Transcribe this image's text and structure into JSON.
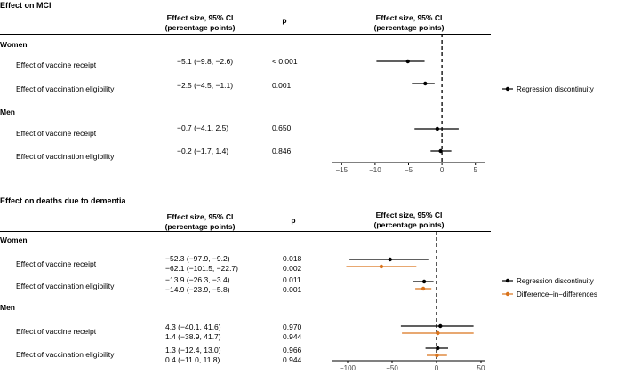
{
  "panels": [
    {
      "title": "Effect on MCI",
      "col_effect": "Effect size, 95% CI",
      "col_effect_sub": "(percentage points)",
      "col_p": "p",
      "chart_header": "Effect size, 95% CI",
      "chart_header_sub": "(percentage points)",
      "groups": [
        {
          "name": "Women",
          "rows": [
            {
              "label": "Effect of vaccine receipt",
              "estimates": [
                {
                  "series": "Regression discontinuity",
                  "text": "−5.1 (−9.8, −2.6)",
                  "p": "< 0.001"
                }
              ]
            },
            {
              "label": "Effect of vaccination eligibility",
              "estimates": [
                {
                  "series": "Regression discontinuity",
                  "text": "−2.5 (−4.5, −1.1)",
                  "p": "0.001"
                }
              ]
            }
          ]
        },
        {
          "name": "Men",
          "rows": [
            {
              "label": "Effect of vaccine receipt",
              "estimates": [
                {
                  "series": "Regression discontinuity",
                  "text": "−0.7 (−4.1,  2.5)",
                  "p": "0.650"
                }
              ]
            },
            {
              "label": "Effect of vaccination eligibility",
              "estimates": [
                {
                  "series": "Regression discontinuity",
                  "text": "−0.2 (−1.7,  1.4)",
                  "p": "0.846"
                }
              ]
            }
          ]
        }
      ],
      "legend": [
        {
          "name": "Regression discontinuity",
          "color": "#000000"
        }
      ]
    },
    {
      "title": "Effect on deaths due to dementia",
      "col_effect": "Effect size, 95% CI",
      "col_effect_sub": "(percentage points)",
      "col_p": "p",
      "chart_header": "Effect size, 95% CI",
      "chart_header_sub": "(percentage points)",
      "groups": [
        {
          "name": "Women",
          "rows": [
            {
              "label": "Effect of vaccine receipt",
              "estimates": [
                {
                  "series": "Regression discontinuity",
                  "text": "−52.3 (−97.9,  −9.2)",
                  "p": "0.018"
                },
                {
                  "series": "Difference−in−differences",
                  "text": "−62.1 (−101.5, −22.7)",
                  "p": "0.002"
                }
              ]
            },
            {
              "label": "Effect of vaccination eligibility",
              "estimates": [
                {
                  "series": "Regression discontinuity",
                  "text": "−13.9 (−26.3,  −3.4)",
                  "p": "0.011"
                },
                {
                  "series": "Difference−in−differences",
                  "text": "−14.9 (−23.9,  −5.8)",
                  "p": "0.001"
                }
              ]
            }
          ]
        },
        {
          "name": "Men",
          "rows": [
            {
              "label": "Effect of vaccine receipt",
              "estimates": [
                {
                  "series": "Regression discontinuity",
                  "text": "4.3 (−40.1,  41.6)",
                  "p": "0.970"
                },
                {
                  "series": "Difference−in−differences",
                  "text": "1.4 (−38.9,  41.7)",
                  "p": "0.944"
                }
              ]
            },
            {
              "label": "Effect of vaccination eligibility",
              "estimates": [
                {
                  "series": "Regression discontinuity",
                  "text": "1.3 (−12.4,  13.0)",
                  "p": "0.966"
                },
                {
                  "series": "Difference−in−differences",
                  "text": "0.4 (−11.0,  11.8)",
                  "p": "0.944"
                }
              ]
            }
          ]
        }
      ],
      "legend": [
        {
          "name": "Regression discontinuity",
          "color": "#000000"
        },
        {
          "name": "Difference−in−differences",
          "color": "#d9731c"
        }
      ]
    }
  ],
  "chart_data": [
    {
      "type": "forest",
      "title": "Effect on MCI",
      "xlabel": "Effect size, 95% CI (percentage points)",
      "xlim": [
        -16.5,
        6.5
      ],
      "xticks": [
        -15,
        -10,
        -5,
        0,
        5
      ],
      "reference_line": 0,
      "series": [
        {
          "name": "Regression discontinuity",
          "color": "#000000",
          "points": [
            {
              "group": "Women",
              "label": "Effect of vaccine receipt",
              "est": -5.1,
              "lo": -9.8,
              "hi": -2.6
            },
            {
              "group": "Women",
              "label": "Effect of vaccination eligibility",
              "est": -2.5,
              "lo": -4.5,
              "hi": -1.1
            },
            {
              "group": "Men",
              "label": "Effect of vaccine receipt",
              "est": -0.7,
              "lo": -4.1,
              "hi": 2.5
            },
            {
              "group": "Men",
              "label": "Effect of vaccination eligibility",
              "est": -0.2,
              "lo": -1.7,
              "hi": 1.4
            }
          ]
        }
      ]
    },
    {
      "type": "forest",
      "title": "Effect on deaths due to dementia",
      "xlabel": "Effect size, 95% CI (percentage points)",
      "xlim": [
        -118,
        55
      ],
      "xticks": [
        -100,
        -50,
        0,
        50
      ],
      "reference_line": 0,
      "series": [
        {
          "name": "Regression discontinuity",
          "color": "#000000",
          "points": [
            {
              "group": "Women",
              "label": "Effect of vaccine receipt",
              "est": -52.3,
              "lo": -97.9,
              "hi": -9.2
            },
            {
              "group": "Women",
              "label": "Effect of vaccination eligibility",
              "est": -13.9,
              "lo": -26.3,
              "hi": -3.4
            },
            {
              "group": "Men",
              "label": "Effect of vaccine receipt",
              "est": 4.3,
              "lo": -40.1,
              "hi": 41.6
            },
            {
              "group": "Men",
              "label": "Effect of vaccination eligibility",
              "est": 1.3,
              "lo": -12.4,
              "hi": 13.0
            }
          ]
        },
        {
          "name": "Difference−in−differences",
          "color": "#d9731c",
          "points": [
            {
              "group": "Women",
              "label": "Effect of vaccine receipt",
              "est": -62.1,
              "lo": -101.5,
              "hi": -22.7
            },
            {
              "group": "Women",
              "label": "Effect of vaccination eligibility",
              "est": -14.9,
              "lo": -23.9,
              "hi": -5.8
            },
            {
              "group": "Men",
              "label": "Effect of vaccine receipt",
              "est": 1.4,
              "lo": -38.9,
              "hi": 41.7
            },
            {
              "group": "Men",
              "label": "Effect of vaccination eligibility",
              "est": 0.4,
              "lo": -11.0,
              "hi": 11.8
            }
          ]
        }
      ]
    }
  ]
}
